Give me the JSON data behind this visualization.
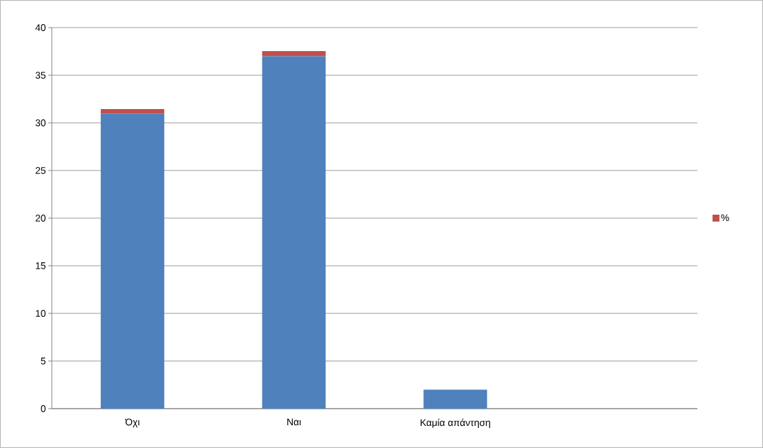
{
  "chart_data": {
    "type": "bar",
    "stacked": true,
    "categories": [
      "Όχι",
      "Ναι",
      "Καμία απάντηση",
      null
    ],
    "series": [
      {
        "color": "#4f81bd",
        "values": [
          31,
          37,
          2,
          null
        ]
      },
      {
        "name": "%",
        "color": "#c0504d",
        "values": [
          0.44,
          0.53,
          null,
          null
        ]
      }
    ],
    "ylim": [
      0,
      40
    ],
    "yticks": [
      0,
      5,
      10,
      15,
      20,
      25,
      30,
      35,
      40
    ],
    "grid": "y",
    "legend": "right"
  }
}
